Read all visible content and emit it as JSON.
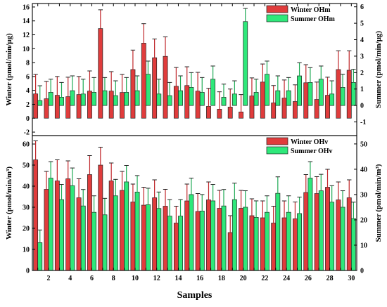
{
  "chart_data": [
    {
      "type": "bar",
      "panel": "top",
      "categories": [
        "1",
        "2",
        "3",
        "4",
        "5",
        "6",
        "7",
        "8",
        "9",
        "10",
        "11",
        "12",
        "13",
        "14",
        "15",
        "16",
        "17",
        "18",
        "19",
        "20",
        "21",
        "22",
        "23",
        "24",
        "25",
        "26",
        "27",
        "28",
        "29",
        "30"
      ],
      "series": [
        {
          "name": "Winter OHm",
          "axis": "left",
          "color": "#e03c3c",
          "values": [
            3.5,
            2.8,
            3.3,
            3.1,
            3.4,
            3.9,
            12.9,
            3.9,
            3.7,
            7.0,
            10.8,
            8.7,
            8.9,
            4.6,
            4.7,
            3.9,
            1.7,
            1.3,
            1.6,
            0.9,
            3.2,
            5.2,
            2.2,
            2.9,
            2.4,
            5.1,
            2.7,
            3.3,
            7.0,
            6.9
          ],
          "errors": [
            2.8,
            2.5,
            2.7,
            2.8,
            2.6,
            2.9,
            2.7,
            2.8,
            2.6,
            2.8,
            2.8,
            2.7,
            2.8,
            2.7,
            2.7,
            2.7,
            2.6,
            2.5,
            2.6,
            2.5,
            2.6,
            2.6,
            2.5,
            2.6,
            2.4,
            2.6,
            2.5,
            2.6,
            2.7,
            2.8
          ]
        },
        {
          "name": "Summer OHm",
          "axis": "right",
          "color": "#2ee87a",
          "values": [
            0.3,
            0.8,
            0.5,
            0.9,
            0.7,
            0.8,
            0.9,
            0.6,
            0.8,
            0.9,
            1.9,
            0.7,
            0.6,
            0.9,
            1.1,
            0.8,
            1.6,
            0.5,
            0.7,
            5.1,
            0.8,
            1.9,
            0.9,
            0.9,
            1.8,
            1.4,
            1.6,
            0.7,
            1.1,
            1.4
          ],
          "errors": [
            0.9,
            0.8,
            0.9,
            0.9,
            0.9,
            0.9,
            0.8,
            0.9,
            0.9,
            0.9,
            0.8,
            0.9,
            0.8,
            0.9,
            0.9,
            0.9,
            0.8,
            0.8,
            0.8,
            0.8,
            0.8,
            0.8,
            0.9,
            0.8,
            0.8,
            0.9,
            0.8,
            0.8,
            0.8,
            0.8
          ]
        }
      ],
      "ylabel_left": "Winter (pmol/min/μg)",
      "ylabel_right": "Summer (pmol/min/μg)",
      "ylim_left": [
        -2.5,
        16.5
      ],
      "ylim_right": [
        -1.83,
        6.2
      ],
      "yticks_left": [
        -2,
        0,
        2,
        4,
        6,
        8,
        10,
        12,
        14,
        16
      ],
      "yticks_right": [
        -1,
        0,
        1,
        2,
        3,
        4,
        5,
        6
      ],
      "legend": "top-right",
      "grid": false
    },
    {
      "type": "bar",
      "panel": "bottom",
      "categories": [
        "1",
        "2",
        "3",
        "4",
        "5",
        "6",
        "7",
        "8",
        "9",
        "10",
        "11",
        "12",
        "13",
        "14",
        "15",
        "16",
        "17",
        "18",
        "19",
        "20",
        "21",
        "22",
        "23",
        "24",
        "25",
        "26",
        "27",
        "28",
        "29",
        "30"
      ],
      "series": [
        {
          "name": "Winter OHv",
          "axis": "left",
          "color": "#e03c3c",
          "values": [
            52.5,
            38.5,
            42.5,
            43.5,
            34.5,
            45.5,
            50,
            42.5,
            38,
            32.5,
            31,
            34.5,
            30.5,
            22.5,
            33,
            28,
            33.5,
            29.5,
            18,
            29.5,
            26,
            25,
            22.5,
            25,
            24.5,
            37,
            36.5,
            39.5,
            33.5,
            34.5
          ],
          "errors": [
            9,
            8.5,
            10,
            8.5,
            9,
            9,
            8.5,
            8.5,
            9,
            8.5,
            8.5,
            8.5,
            8,
            8,
            8,
            8.5,
            8.5,
            8.5,
            8,
            8.5,
            8,
            8,
            8,
            8,
            8,
            8.5,
            8,
            8.5,
            8.5,
            8.5
          ]
        },
        {
          "name": "Summer OHv",
          "axis": "right",
          "color": "#2ee87a",
          "values": [
            11,
            36.5,
            28,
            33.5,
            25.5,
            23,
            22,
            29.5,
            35,
            31,
            26,
            24.5,
            21.5,
            21.5,
            30,
            23.5,
            27.5,
            25.5,
            28,
            25,
            21,
            23,
            30.5,
            23,
            22.5,
            36.5,
            31.5,
            27,
            25,
            20.5
          ],
          "errors": [
            5,
            6.5,
            6,
            7,
            6.5,
            6.5,
            6.5,
            6.5,
            6.5,
            6.5,
            6.5,
            6.5,
            6.5,
            6.5,
            6.5,
            6.5,
            6.5,
            6.5,
            6.5,
            6.5,
            6.5,
            6.5,
            6.5,
            6.5,
            6.5,
            6.5,
            6.5,
            6.5,
            6.5,
            6.5
          ]
        }
      ],
      "xlabel": "Samples",
      "xticks": [
        "2",
        "4",
        "6",
        "8",
        "10",
        "12",
        "14",
        "16",
        "18",
        "20",
        "22",
        "24",
        "26",
        "28",
        "30"
      ],
      "ylabel_left": "Winter (pmol/min/m³)",
      "ylabel_right": "Summer (pmol/min/m³)",
      "ylim_left": [
        0,
        64
      ],
      "ylim_right": [
        0,
        53.3
      ],
      "yticks_left": [
        0,
        10,
        20,
        30,
        40,
        50,
        60
      ],
      "yticks_right": [
        0,
        10,
        20,
        30,
        40,
        50
      ],
      "legend": "top-right",
      "grid": false
    }
  ]
}
